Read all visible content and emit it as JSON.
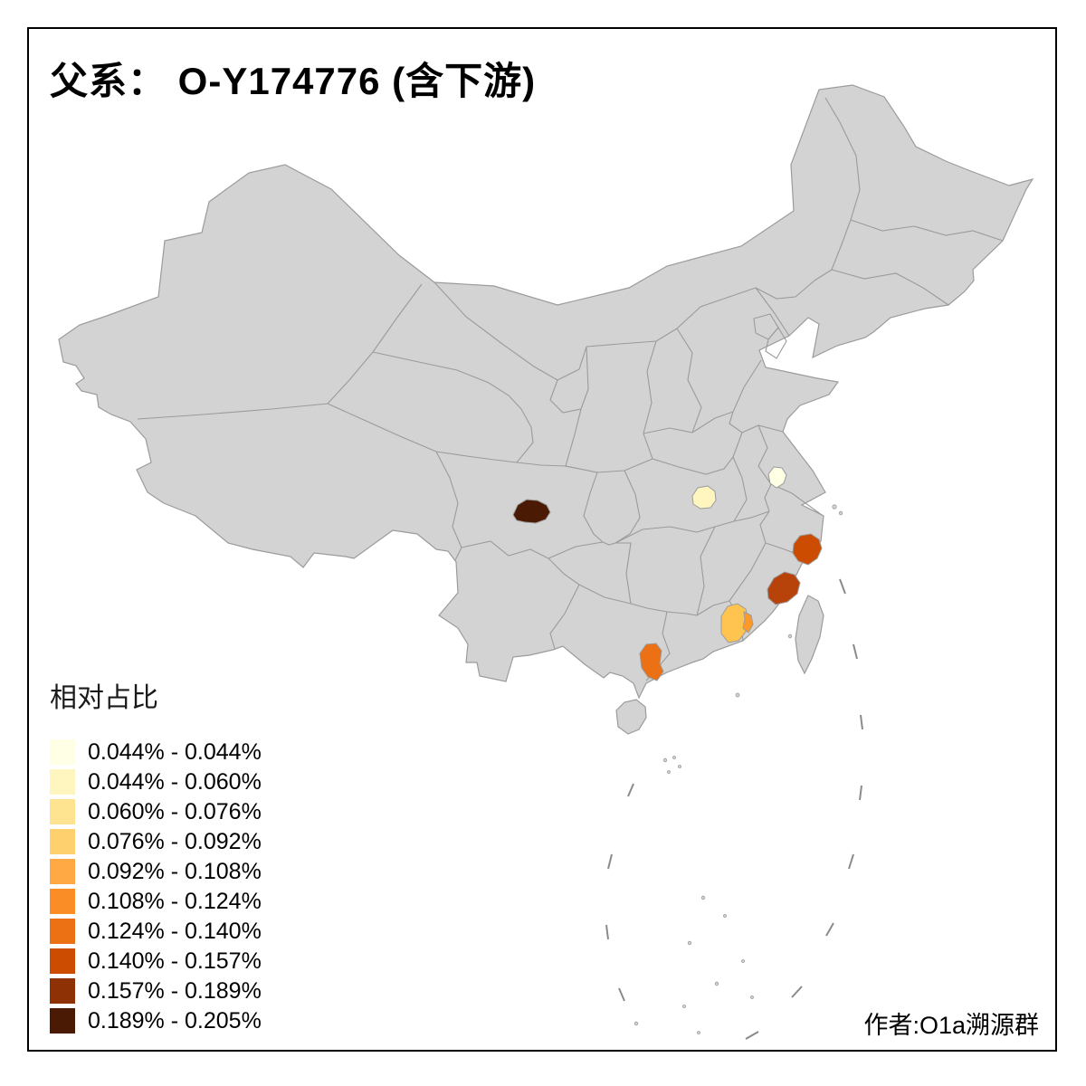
{
  "title": "父系： O-Y174776 (含下游)",
  "legend": {
    "title": "相对占比",
    "items": [
      {
        "label": "0.044% - 0.044%",
        "color": "#FFFFE5"
      },
      {
        "label": "0.044% - 0.060%",
        "color": "#FFF5BF"
      },
      {
        "label": "0.060% - 0.076%",
        "color": "#FEE391"
      },
      {
        "label": "0.076% - 0.092%",
        "color": "#FED16E"
      },
      {
        "label": "0.092% - 0.108%",
        "color": "#FEA943"
      },
      {
        "label": "0.108% - 0.124%",
        "color": "#FB8D27"
      },
      {
        "label": "0.124% - 0.140%",
        "color": "#EC7014"
      },
      {
        "label": "0.140% - 0.157%",
        "color": "#CC4C02"
      },
      {
        "label": "0.157% - 0.189%",
        "color": "#8E3104"
      },
      {
        "label": "0.189% - 0.205%",
        "color": "#4A1A04"
      }
    ]
  },
  "credit": "作者:O1a溯源群",
  "map": {
    "base_fill": "#D3D3D3",
    "border_color": "#9B9B9B",
    "dash_color": "#8A8A8A",
    "regions": [
      {
        "id": "west-sichuan",
        "color": "#4A1A04"
      },
      {
        "id": "north-hunan",
        "color": "#FFF5BF"
      },
      {
        "id": "south-jiangsu",
        "color": "#FFFFE5"
      },
      {
        "id": "east-zhejiang",
        "color": "#CC4C02"
      },
      {
        "id": "south-fujian",
        "color": "#B8430A"
      },
      {
        "id": "central-guangdong",
        "color": "#FEC44F"
      },
      {
        "id": "central-guangdong-east",
        "color": "#FE9929"
      },
      {
        "id": "leizhou-guangdong",
        "color": "#EC7014"
      }
    ]
  }
}
